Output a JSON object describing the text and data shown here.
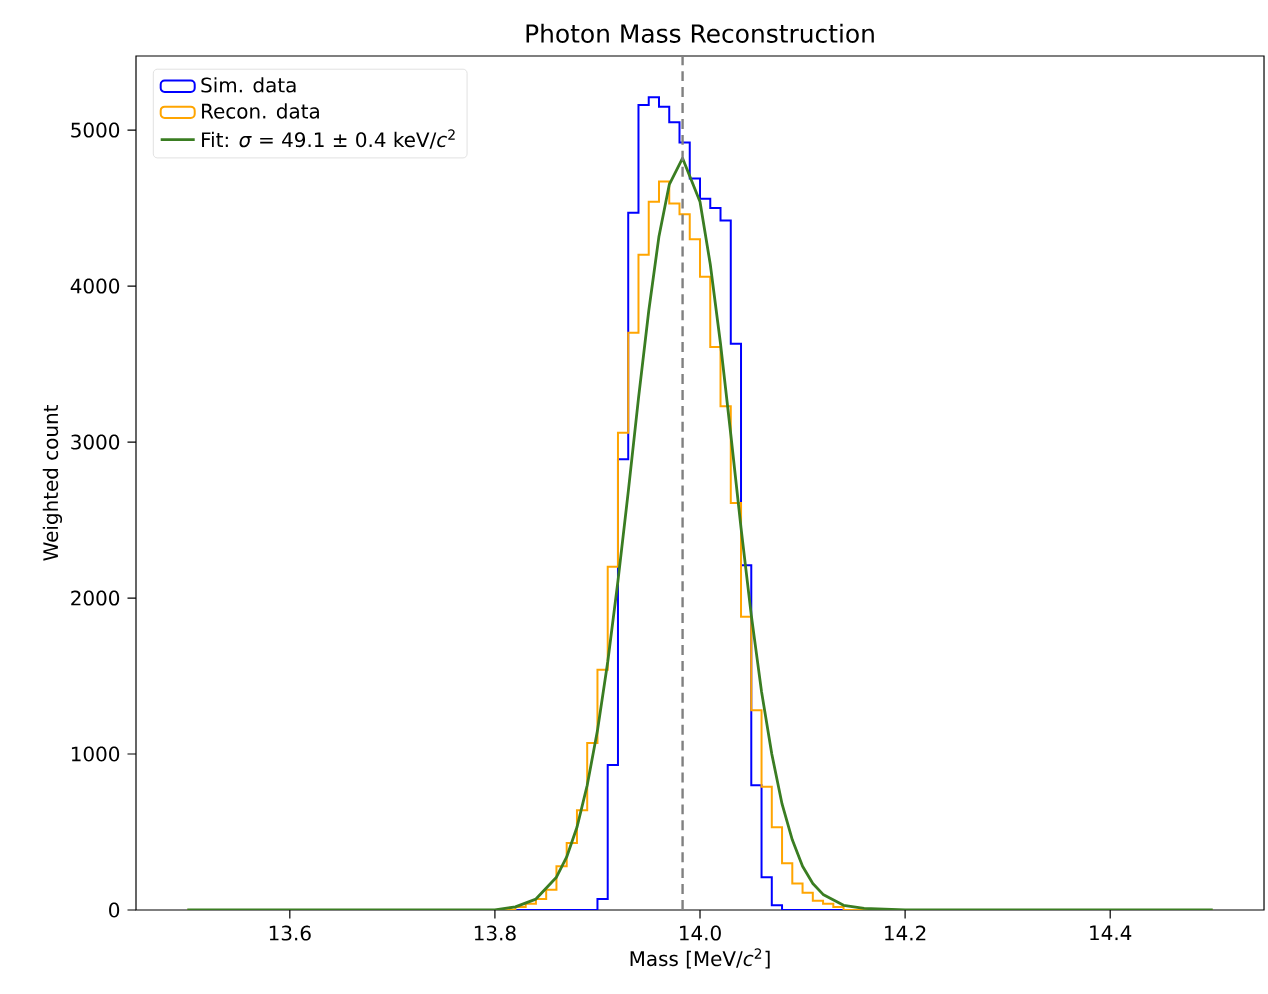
{
  "chart_data": {
    "type": "histogram",
    "title": "Photon Mass Reconstruction",
    "xlabel": "Mass [MeV/*c*$^{2}$]",
    "ylabel": "Weighted count",
    "xlim": [
      13.45,
      14.55
    ],
    "ylim": [
      0,
      5475
    ],
    "xticks": [
      13.6,
      13.8,
      {
        "value": 14.0,
        "label": "14.0"
      },
      14.2,
      14.4
    ],
    "yticks": [
      0,
      1000,
      2000,
      3000,
      4000,
      5000
    ],
    "legend": "top left",
    "bins": [
      13.5,
      13.51,
      13.52,
      13.53,
      13.54,
      13.55,
      13.56,
      13.57,
      13.58,
      13.59,
      13.6,
      13.61,
      13.62,
      13.63,
      13.64,
      13.65,
      13.66,
      13.67,
      13.68,
      13.69,
      13.7,
      13.71,
      13.72,
      13.73,
      13.74,
      13.75,
      13.76,
      13.77,
      13.78,
      13.79,
      13.8,
      13.81,
      13.82,
      13.83,
      13.84,
      13.85,
      13.86,
      13.87,
      13.88,
      13.89,
      13.9,
      13.91,
      13.92,
      13.93,
      13.94,
      13.95,
      13.96,
      13.97,
      13.98,
      13.99,
      14.0,
      14.01,
      14.02,
      14.03,
      14.04,
      14.05,
      14.06,
      14.07,
      14.08,
      14.09,
      14.1,
      14.11,
      14.12,
      14.13,
      14.14,
      14.15,
      14.16,
      14.17,
      14.18,
      14.19,
      14.2,
      14.21,
      14.22,
      14.23,
      14.24,
      14.25,
      14.26,
      14.27,
      14.28,
      14.29,
      14.3,
      14.31,
      14.32,
      14.33,
      14.34,
      14.35,
      14.36,
      14.37,
      14.38,
      14.39,
      14.4,
      14.41,
      14.42,
      14.43,
      14.44,
      14.45,
      14.46,
      14.47,
      14.48,
      14.49,
      14.5
    ],
    "series": [
      {
        "name": "Sim. data",
        "color": "#0000ff",
        "values": [
          0,
          0,
          0,
          0,
          0,
          0,
          0,
          0,
          0,
          0,
          0,
          0,
          0,
          0,
          0,
          0,
          0,
          0,
          0,
          0,
          0,
          0,
          0,
          0,
          0,
          0,
          0,
          0,
          0,
          0,
          0,
          0,
          0,
          0,
          0,
          0,
          0,
          0,
          0,
          0,
          70,
          930,
          2890,
          4470,
          5160,
          5210,
          5150,
          5050,
          4920,
          4690,
          4560,
          4500,
          4420,
          3630,
          2210,
          800,
          210,
          30,
          0,
          0,
          0,
          0,
          0,
          0,
          0,
          0,
          0,
          0,
          0,
          0,
          0,
          0,
          0,
          0,
          0,
          0,
          0,
          0,
          0,
          0,
          0,
          0,
          0,
          0,
          0,
          0,
          0,
          0,
          0,
          0,
          0,
          0,
          0,
          0,
          0,
          0,
          0,
          0,
          0,
          0
        ]
      },
      {
        "name": "Recon. data",
        "color": "#ffa500",
        "values": [
          0,
          0,
          0,
          0,
          0,
          0,
          0,
          0,
          0,
          0,
          0,
          0,
          0,
          0,
          0,
          0,
          0,
          0,
          0,
          0,
          0,
          0,
          0,
          0,
          0,
          0,
          0,
          0,
          0,
          0,
          0,
          0,
          20,
          40,
          70,
          130,
          280,
          430,
          640,
          1070,
          1540,
          2200,
          3060,
          3700,
          4200,
          4540,
          4670,
          4530,
          4460,
          4300,
          4060,
          3610,
          3230,
          2610,
          1880,
          1280,
          790,
          530,
          300,
          170,
          110,
          60,
          40,
          20,
          0,
          0,
          0,
          0,
          0,
          0,
          0,
          0,
          0,
          0,
          0,
          0,
          0,
          0,
          0,
          0,
          0,
          0,
          0,
          0,
          0,
          0,
          0,
          0,
          0,
          0,
          0,
          0,
          0,
          0,
          0,
          0,
          0,
          0,
          0,
          0
        ]
      },
      {
        "name": "Fit: *σ* = 49.1 ± 0.4 keV/*c*$^{2}$",
        "type": "line",
        "color": "#3a7d22",
        "x": [
          13.5,
          13.7,
          13.75,
          13.78,
          13.8,
          13.82,
          13.84,
          13.86,
          13.87,
          13.88,
          13.89,
          13.9,
          13.91,
          13.92,
          13.93,
          13.94,
          13.95,
          13.96,
          13.97,
          13.983,
          14.0,
          14.01,
          14.02,
          14.03,
          14.04,
          14.05,
          14.06,
          14.07,
          14.08,
          14.09,
          14.1,
          14.11,
          14.12,
          14.14,
          14.16,
          14.2,
          14.5
        ],
        "values": [
          0,
          0,
          0,
          0,
          0,
          20,
          70,
          210,
          340,
          530,
          800,
          1150,
          1590,
          2110,
          2680,
          3280,
          3840,
          4320,
          4650,
          4820,
          4540,
          4140,
          3630,
          3050,
          2450,
          1890,
          1400,
          1000,
          680,
          450,
          280,
          170,
          100,
          30,
          10,
          0,
          0
        ]
      }
    ],
    "ref_lines": [
      {
        "axis": "x",
        "value": 13.983,
        "color": "#808080",
        "line_style": "dashed"
      }
    ]
  }
}
